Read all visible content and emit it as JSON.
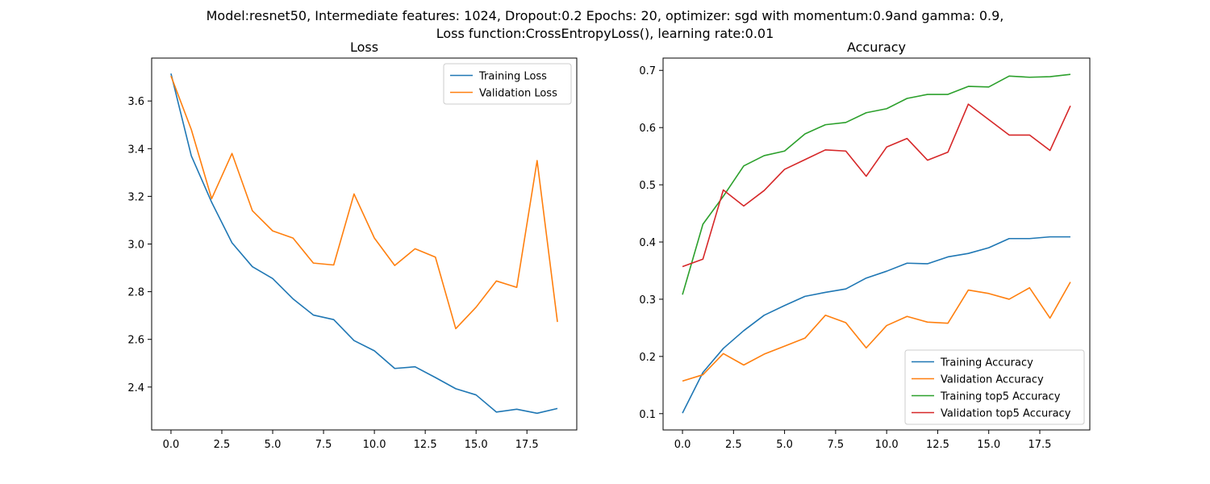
{
  "figure": {
    "suptitle_line1": "Model:resnet50, Intermediate features: 1024, Dropout:0.2 Epochs: 20, optimizer: sgd with momentum:0.9and gamma: 0.9,",
    "suptitle_line2": "Loss function:CrossEntropyLoss(), learning rate:0.01"
  },
  "colors": {
    "blue": "#1f77b4",
    "orange": "#ff7f0e",
    "green": "#2ca02c",
    "red": "#d62728"
  },
  "chart_data": [
    {
      "type": "line",
      "title": "Loss",
      "xlabel": "",
      "ylabel": "",
      "x": [
        0,
        1,
        2,
        3,
        4,
        5,
        6,
        7,
        8,
        9,
        10,
        11,
        12,
        13,
        14,
        15,
        16,
        17,
        18,
        19
      ],
      "xlim": [
        -0.95,
        19.95
      ],
      "ylim": [
        2.22,
        3.78
      ],
      "xticks": [
        0,
        2.5,
        5,
        7.5,
        10,
        12.5,
        15,
        17.5
      ],
      "xtick_labels": [
        "0.0",
        "2.5",
        "5.0",
        "7.5",
        "10.0",
        "12.5",
        "15.0",
        "17.5"
      ],
      "yticks": [
        2.4,
        2.6,
        2.8,
        3.0,
        3.2,
        3.4,
        3.6
      ],
      "ytick_labels": [
        "2.4",
        "2.6",
        "2.8",
        "3.0",
        "3.2",
        "3.4",
        "3.6"
      ],
      "legend_position": "top-right",
      "series": [
        {
          "name": "Training Loss",
          "color": "#1f77b4",
          "values": [
            3.715,
            3.37,
            3.175,
            3.005,
            2.905,
            2.855,
            2.77,
            2.702,
            2.683,
            2.595,
            2.552,
            2.478,
            2.485,
            2.44,
            2.393,
            2.367,
            2.295,
            2.307,
            2.29,
            2.31
          ]
        },
        {
          "name": "Validation Loss",
          "color": "#ff7f0e",
          "values": [
            3.705,
            3.48,
            3.19,
            3.38,
            3.14,
            3.055,
            3.025,
            2.92,
            2.912,
            3.21,
            3.025,
            2.91,
            2.98,
            2.945,
            2.645,
            2.735,
            2.845,
            2.818,
            3.35,
            2.673
          ]
        }
      ]
    },
    {
      "type": "line",
      "title": "Accuracy",
      "xlabel": "",
      "ylabel": "",
      "x": [
        0,
        1,
        2,
        3,
        4,
        5,
        6,
        7,
        8,
        9,
        10,
        11,
        12,
        13,
        14,
        15,
        16,
        17,
        18,
        19
      ],
      "xlim": [
        -0.95,
        19.95
      ],
      "ylim": [
        0.0715,
        0.7215
      ],
      "xticks": [
        0,
        2.5,
        5,
        7.5,
        10,
        12.5,
        15,
        17.5
      ],
      "xtick_labels": [
        "0.0",
        "2.5",
        "5.0",
        "7.5",
        "10.0",
        "12.5",
        "15.0",
        "17.5"
      ],
      "yticks": [
        0.1,
        0.2,
        0.3,
        0.4,
        0.5,
        0.6,
        0.7
      ],
      "ytick_labels": [
        "0.1",
        "0.2",
        "0.3",
        "0.4",
        "0.5",
        "0.6",
        "0.7"
      ],
      "legend_position": "bottom-right",
      "series": [
        {
          "name": "Training Accuracy",
          "color": "#1f77b4",
          "values": [
            0.101,
            0.172,
            0.214,
            0.245,
            0.272,
            0.289,
            0.305,
            0.312,
            0.318,
            0.337,
            0.349,
            0.363,
            0.362,
            0.374,
            0.38,
            0.39,
            0.406,
            0.406,
            0.409,
            0.409
          ]
        },
        {
          "name": "Validation Accuracy",
          "color": "#ff7f0e",
          "values": [
            0.157,
            0.168,
            0.205,
            0.185,
            0.204,
            0.218,
            0.232,
            0.272,
            0.259,
            0.215,
            0.254,
            0.27,
            0.26,
            0.258,
            0.316,
            0.31,
            0.3,
            0.32,
            0.267,
            0.33
          ]
        },
        {
          "name": "Training top5 Accuracy",
          "color": "#2ca02c",
          "values": [
            0.308,
            0.431,
            0.48,
            0.533,
            0.551,
            0.559,
            0.589,
            0.605,
            0.609,
            0.626,
            0.633,
            0.651,
            0.658,
            0.658,
            0.672,
            0.671,
            0.69,
            0.688,
            0.689,
            0.693
          ]
        },
        {
          "name": "Validation top5 Accuracy",
          "color": "#d62728",
          "values": [
            0.357,
            0.37,
            0.491,
            0.463,
            0.49,
            0.527,
            0.544,
            0.561,
            0.559,
            0.515,
            0.566,
            0.581,
            0.543,
            0.557,
            0.641,
            0.614,
            0.587,
            0.587,
            0.56,
            0.638
          ]
        }
      ]
    }
  ]
}
